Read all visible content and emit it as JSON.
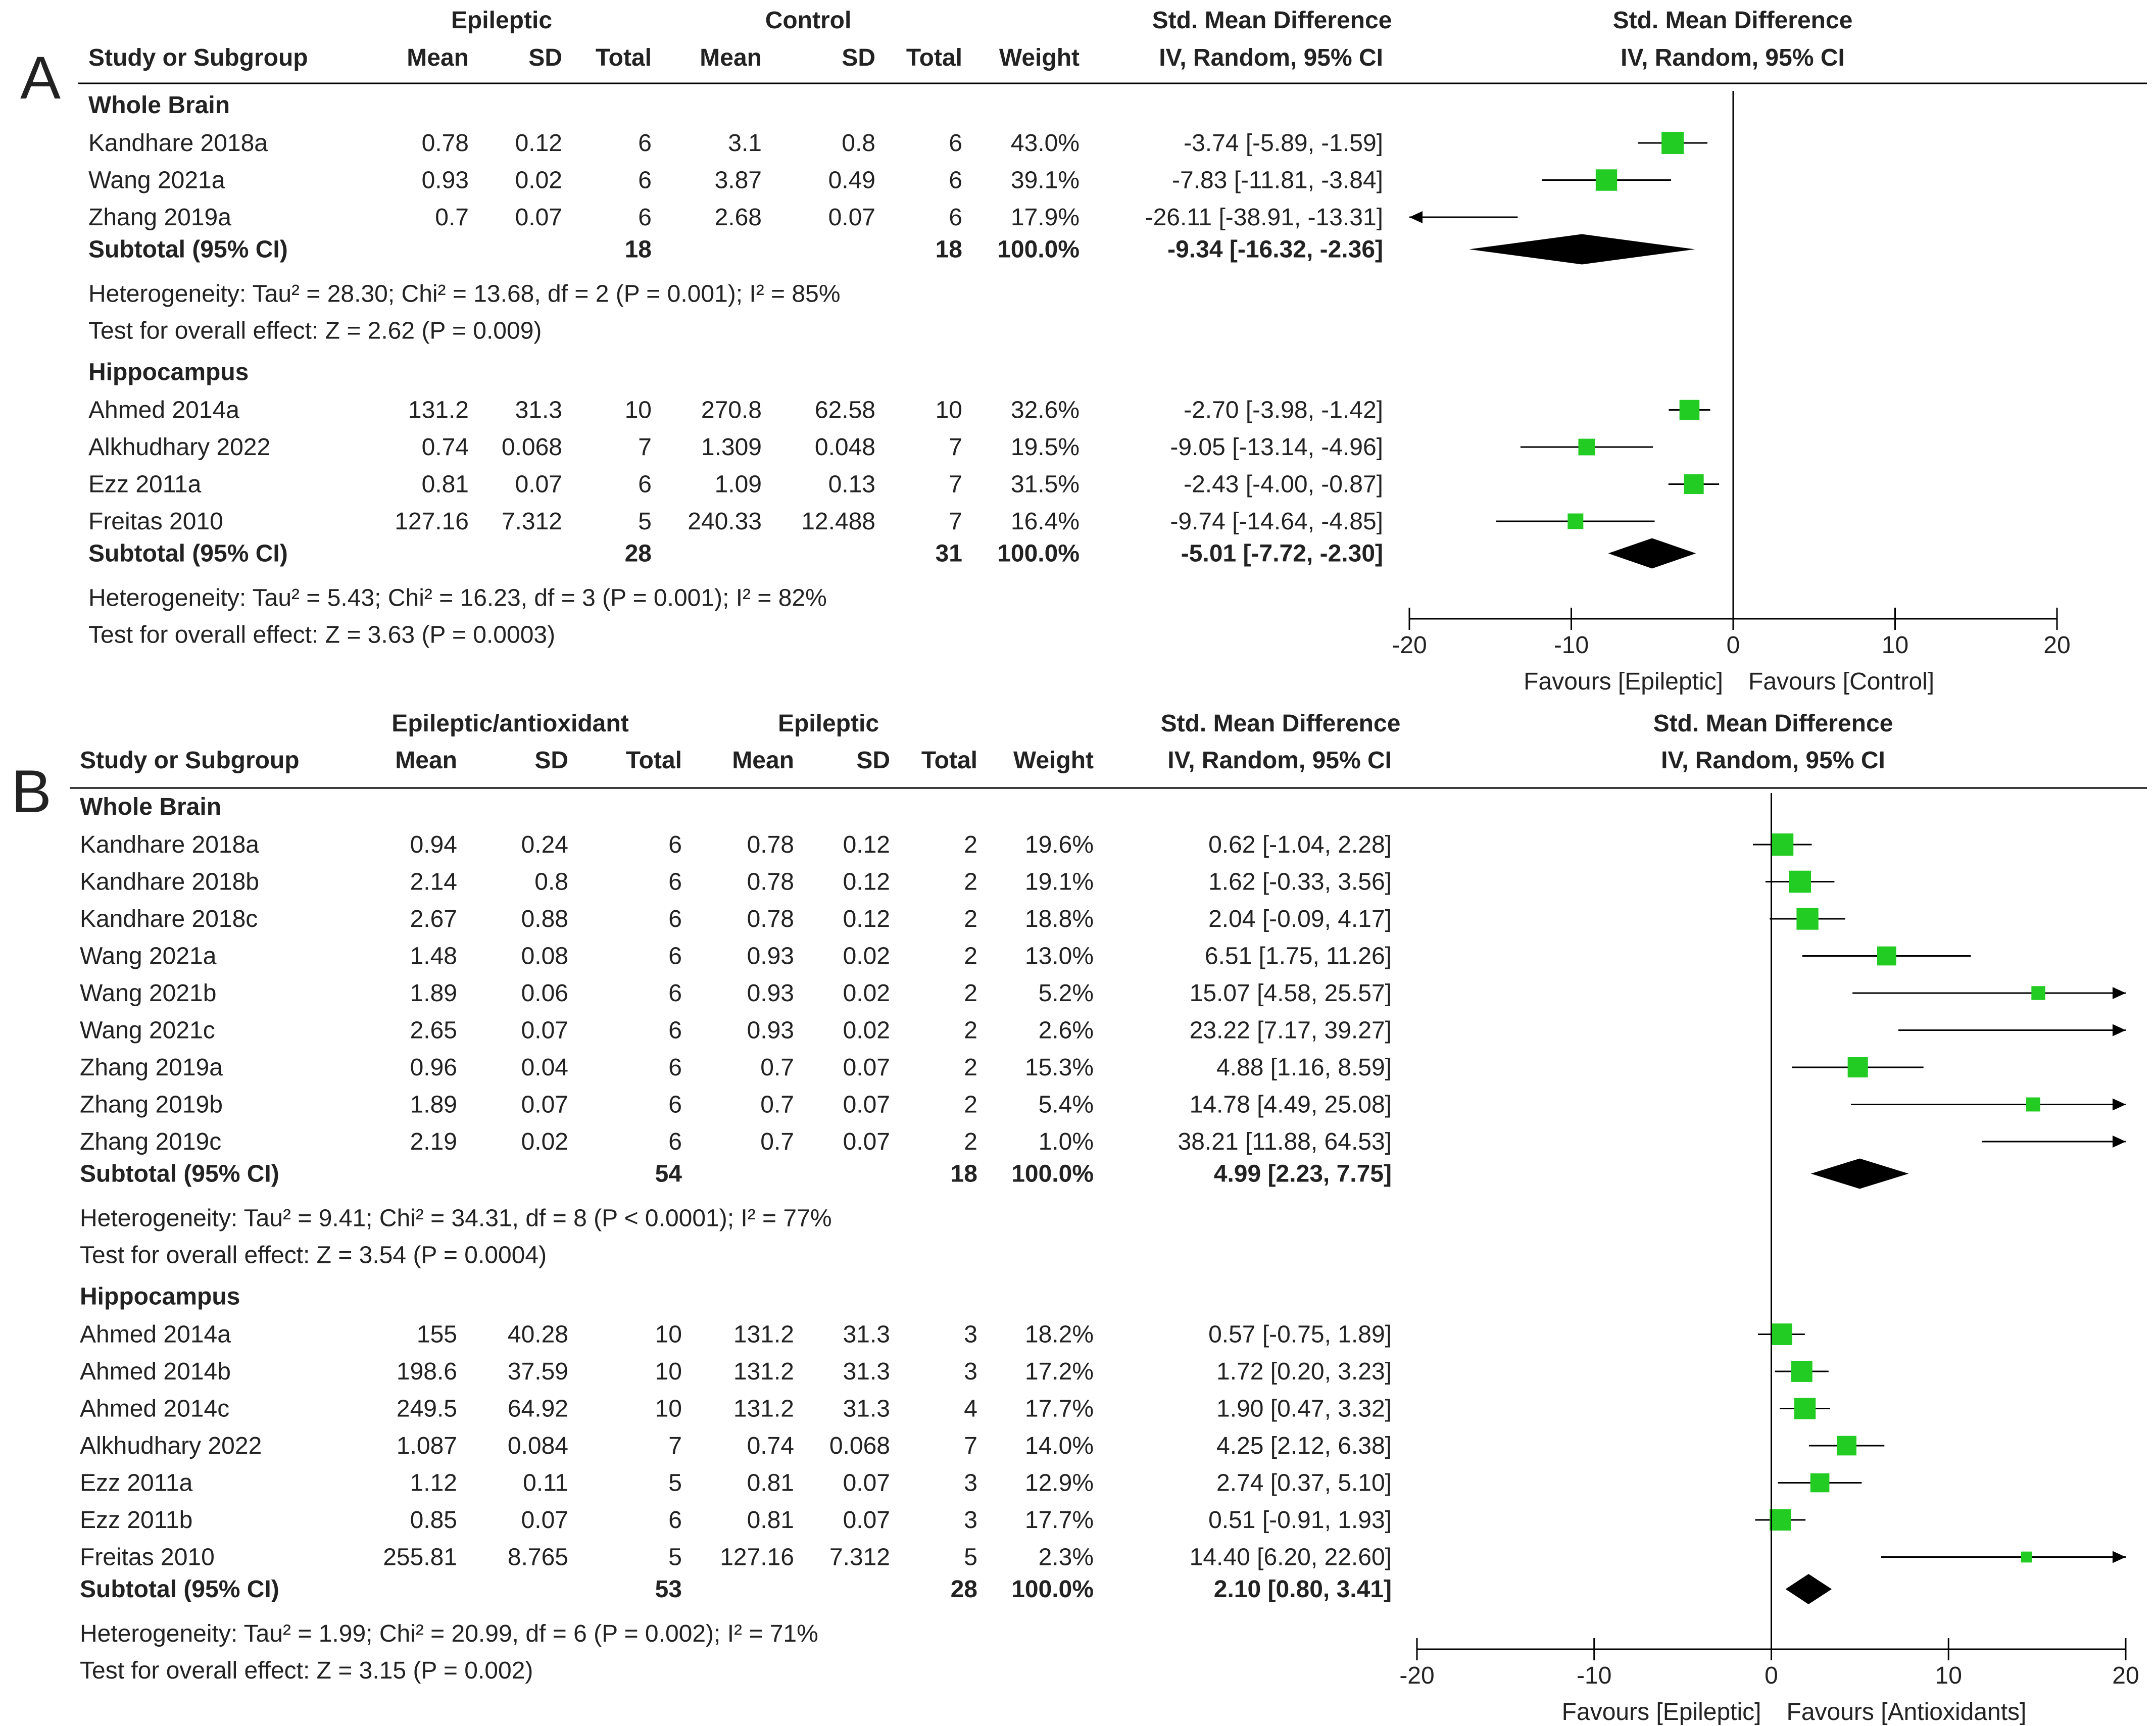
{
  "panels": [
    {
      "letter": "A",
      "group1_name": "Epileptic",
      "group2_name": "Control",
      "headers": {
        "study": "Study or Subgroup",
        "mean1": "Mean",
        "sd1": "SD",
        "total1": "Total",
        "mean2": "Mean",
        "sd2": "SD",
        "total2": "Total",
        "weight": "Weight",
        "effect_title": "Std. Mean Difference",
        "effect_sub": "IV, Random, 95% CI",
        "plot_title": "Std. Mean Difference",
        "plot_sub": "IV, Random, 95% CI"
      },
      "axis": {
        "ticks": [
          "-20",
          "-10",
          "0",
          "10",
          "20"
        ],
        "tick_values": [
          -20,
          -10,
          0,
          10,
          20
        ],
        "range": [
          -20,
          20
        ],
        "favours_left": "Favours [Epileptic]",
        "favours_right": "Favours [Control]"
      },
      "subgroups": [
        {
          "name": "Whole Brain",
          "studies": [
            {
              "study": "Kandhare 2018a",
              "mean1": "0.78",
              "sd1": "0.12",
              "total1": "6",
              "mean2": "3.1",
              "sd2": "0.8",
              "total2": "6",
              "weight": "43.0%",
              "ci": "-3.74 [-5.89, -1.59]",
              "est": -3.74,
              "lo": -5.89,
              "hi": -1.59,
              "w": 43.0
            },
            {
              "study": "Wang 2021a",
              "mean1": "0.93",
              "sd1": "0.02",
              "total1": "6",
              "mean2": "3.87",
              "sd2": "0.49",
              "total2": "6",
              "weight": "39.1%",
              "ci": "-7.83 [-11.81, -3.84]",
              "est": -7.83,
              "lo": -11.81,
              "hi": -3.84,
              "w": 39.1
            },
            {
              "study": "Zhang 2019a",
              "mean1": "0.7",
              "sd1": "0.07",
              "total1": "6",
              "mean2": "2.68",
              "sd2": "0.07",
              "total2": "6",
              "weight": "17.9%",
              "ci": "-26.11 [-38.91, -13.31]",
              "est": -26.11,
              "lo": -38.91,
              "hi": -13.31,
              "w": 17.9
            }
          ],
          "subtotal": {
            "label": "Subtotal (95% CI)",
            "total1": "18",
            "total2": "18",
            "weight": "100.0%",
            "ci": "-9.34 [-16.32, -2.36]",
            "est": -9.34,
            "lo": -16.32,
            "hi": -2.36
          },
          "heterogeneity": "Heterogeneity: Tau² = 28.30; Chi² = 13.68, df = 2 (P = 0.001); I² = 85%",
          "overall": "Test for overall effect: Z = 2.62 (P = 0.009)"
        },
        {
          "name": "Hippocampus",
          "studies": [
            {
              "study": "Ahmed 2014a",
              "mean1": "131.2",
              "sd1": "31.3",
              "total1": "10",
              "mean2": "270.8",
              "sd2": "62.58",
              "total2": "10",
              "weight": "32.6%",
              "ci": "-2.70 [-3.98, -1.42]",
              "est": -2.7,
              "lo": -3.98,
              "hi": -1.42,
              "w": 32.6
            },
            {
              "study": "Alkhudhary 2022",
              "mean1": "0.74",
              "sd1": "0.068",
              "total1": "7",
              "mean2": "1.309",
              "sd2": "0.048",
              "total2": "7",
              "weight": "19.5%",
              "ci": "-9.05 [-13.14, -4.96]",
              "est": -9.05,
              "lo": -13.14,
              "hi": -4.96,
              "w": 19.5
            },
            {
              "study": "Ezz 2011a",
              "mean1": "0.81",
              "sd1": "0.07",
              "total1": "6",
              "mean2": "1.09",
              "sd2": "0.13",
              "total2": "7",
              "weight": "31.5%",
              "ci": "-2.43 [-4.00, -0.87]",
              "est": -2.43,
              "lo": -4.0,
              "hi": -0.87,
              "w": 31.5
            },
            {
              "study": "Freitas 2010",
              "mean1": "127.16",
              "sd1": "7.312",
              "total1": "5",
              "mean2": "240.33",
              "sd2": "12.488",
              "total2": "7",
              "weight": "16.4%",
              "ci": "-9.74 [-14.64, -4.85]",
              "est": -9.74,
              "lo": -14.64,
              "hi": -4.85,
              "w": 16.4
            }
          ],
          "subtotal": {
            "label": "Subtotal (95% CI)",
            "total1": "28",
            "total2": "31",
            "weight": "100.0%",
            "ci": "-5.01 [-7.72, -2.30]",
            "est": -5.01,
            "lo": -7.72,
            "hi": -2.3
          },
          "heterogeneity": "Heterogeneity: Tau² = 5.43; Chi² = 16.23, df = 3 (P = 0.001); I² = 82%",
          "overall": "Test for overall effect: Z = 3.63 (P = 0.0003)"
        }
      ]
    },
    {
      "letter": "B",
      "group1_name": "Epileptic/antioxidant",
      "group2_name": "Epileptic",
      "headers": {
        "study": "Study or Subgroup",
        "mean1": "Mean",
        "sd1": "SD",
        "total1": "Total",
        "mean2": "Mean",
        "sd2": "SD",
        "total2": "Total",
        "weight": "Weight",
        "effect_title": "Std. Mean Difference",
        "effect_sub": "IV, Random, 95% CI",
        "plot_title": "Std. Mean Difference",
        "plot_sub": "IV, Random, 95% CI"
      },
      "axis": {
        "ticks": [
          "-20",
          "-10",
          "0",
          "10",
          "20"
        ],
        "tick_values": [
          -20,
          -10,
          0,
          10,
          20
        ],
        "range": [
          -20,
          20
        ],
        "favours_left": "Favours [Epileptic]",
        "favours_right": "Favours [Antioxidants]"
      },
      "subgroups": [
        {
          "name": "Whole Brain",
          "studies": [
            {
              "study": "Kandhare 2018a",
              "mean1": "0.94",
              "sd1": "0.24",
              "total1": "6",
              "mean2": "0.78",
              "sd2": "0.12",
              "total2": "2",
              "weight": "19.6%",
              "ci": "0.62 [-1.04, 2.28]",
              "est": 0.62,
              "lo": -1.04,
              "hi": 2.28,
              "w": 19.6
            },
            {
              "study": "Kandhare 2018b",
              "mean1": "2.14",
              "sd1": "0.8",
              "total1": "6",
              "mean2": "0.78",
              "sd2": "0.12",
              "total2": "2",
              "weight": "19.1%",
              "ci": "1.62 [-0.33, 3.56]",
              "est": 1.62,
              "lo": -0.33,
              "hi": 3.56,
              "w": 19.1
            },
            {
              "study": "Kandhare 2018c",
              "mean1": "2.67",
              "sd1": "0.88",
              "total1": "6",
              "mean2": "0.78",
              "sd2": "0.12",
              "total2": "2",
              "weight": "18.8%",
              "ci": "2.04 [-0.09, 4.17]",
              "est": 2.04,
              "lo": -0.09,
              "hi": 4.17,
              "w": 18.8
            },
            {
              "study": "Wang 2021a",
              "mean1": "1.48",
              "sd1": "0.08",
              "total1": "6",
              "mean2": "0.93",
              "sd2": "0.02",
              "total2": "2",
              "weight": "13.0%",
              "ci": "6.51 [1.75, 11.26]",
              "est": 6.51,
              "lo": 1.75,
              "hi": 11.26,
              "w": 13.0
            },
            {
              "study": "Wang 2021b",
              "mean1": "1.89",
              "sd1": "0.06",
              "total1": "6",
              "mean2": "0.93",
              "sd2": "0.02",
              "total2": "2",
              "weight": "5.2%",
              "ci": "15.07 [4.58, 25.57]",
              "est": 15.07,
              "lo": 4.58,
              "hi": 25.57,
              "w": 5.2
            },
            {
              "study": "Wang 2021c",
              "mean1": "2.65",
              "sd1": "0.07",
              "total1": "6",
              "mean2": "0.93",
              "sd2": "0.02",
              "total2": "2",
              "weight": "2.6%",
              "ci": "23.22 [7.17, 39.27]",
              "est": 23.22,
              "lo": 7.17,
              "hi": 39.27,
              "w": 2.6
            },
            {
              "study": "Zhang 2019a",
              "mean1": "0.96",
              "sd1": "0.04",
              "total1": "6",
              "mean2": "0.7",
              "sd2": "0.07",
              "total2": "2",
              "weight": "15.3%",
              "ci": "4.88 [1.16, 8.59]",
              "est": 4.88,
              "lo": 1.16,
              "hi": 8.59,
              "w": 15.3
            },
            {
              "study": "Zhang 2019b",
              "mean1": "1.89",
              "sd1": "0.07",
              "total1": "6",
              "mean2": "0.7",
              "sd2": "0.07",
              "total2": "2",
              "weight": "5.4%",
              "ci": "14.78 [4.49, 25.08]",
              "est": 14.78,
              "lo": 4.49,
              "hi": 25.08,
              "w": 5.4
            },
            {
              "study": "Zhang 2019c",
              "mean1": "2.19",
              "sd1": "0.02",
              "total1": "6",
              "mean2": "0.7",
              "sd2": "0.07",
              "total2": "2",
              "weight": "1.0%",
              "ci": "38.21 [11.88, 64.53]",
              "est": 38.21,
              "lo": 11.88,
              "hi": 64.53,
              "w": 1.0
            }
          ],
          "subtotal": {
            "label": "Subtotal (95% CI)",
            "total1": "54",
            "total2": "18",
            "weight": "100.0%",
            "ci": "4.99 [2.23, 7.75]",
            "est": 4.99,
            "lo": 2.23,
            "hi": 7.75
          },
          "heterogeneity": "Heterogeneity: Tau² = 9.41; Chi² = 34.31, df = 8 (P < 0.0001); I² = 77%",
          "overall": "Test for overall effect: Z = 3.54 (P = 0.0004)"
        },
        {
          "name": "Hippocampus",
          "studies": [
            {
              "study": "Ahmed 2014a",
              "mean1": "155",
              "sd1": "40.28",
              "total1": "10",
              "mean2": "131.2",
              "sd2": "31.3",
              "total2": "3",
              "weight": "18.2%",
              "ci": "0.57 [-0.75, 1.89]",
              "est": 0.57,
              "lo": -0.75,
              "hi": 1.89,
              "w": 18.2
            },
            {
              "study": "Ahmed 2014b",
              "mean1": "198.6",
              "sd1": "37.59",
              "total1": "10",
              "mean2": "131.2",
              "sd2": "31.3",
              "total2": "3",
              "weight": "17.2%",
              "ci": "1.72 [0.20, 3.23]",
              "est": 1.72,
              "lo": 0.2,
              "hi": 3.23,
              "w": 17.2
            },
            {
              "study": "Ahmed 2014c",
              "mean1": "249.5",
              "sd1": "64.92",
              "total1": "10",
              "mean2": "131.2",
              "sd2": "31.3",
              "total2": "4",
              "weight": "17.7%",
              "ci": "1.90 [0.47, 3.32]",
              "est": 1.9,
              "lo": 0.47,
              "hi": 3.32,
              "w": 17.7
            },
            {
              "study": "Alkhudhary 2022",
              "mean1": "1.087",
              "sd1": "0.084",
              "total1": "7",
              "mean2": "0.74",
              "sd2": "0.068",
              "total2": "7",
              "weight": "14.0%",
              "ci": "4.25 [2.12, 6.38]",
              "est": 4.25,
              "lo": 2.12,
              "hi": 6.38,
              "w": 14.0
            },
            {
              "study": "Ezz 2011a",
              "mean1": "1.12",
              "sd1": "0.11",
              "total1": "5",
              "mean2": "0.81",
              "sd2": "0.07",
              "total2": "3",
              "weight": "12.9%",
              "ci": "2.74 [0.37, 5.10]",
              "est": 2.74,
              "lo": 0.37,
              "hi": 5.1,
              "w": 12.9
            },
            {
              "study": "Ezz 2011b",
              "mean1": "0.85",
              "sd1": "0.07",
              "total1": "6",
              "mean2": "0.81",
              "sd2": "0.07",
              "total2": "3",
              "weight": "17.7%",
              "ci": "0.51 [-0.91, 1.93]",
              "est": 0.51,
              "lo": -0.91,
              "hi": 1.93,
              "w": 17.7
            },
            {
              "study": "Freitas 2010",
              "mean1": "255.81",
              "sd1": "8.765",
              "total1": "5",
              "mean2": "127.16",
              "sd2": "7.312",
              "total2": "5",
              "weight": "2.3%",
              "ci": "14.40 [6.20, 22.60]",
              "est": 14.4,
              "lo": 6.2,
              "hi": 22.6,
              "w": 2.3
            }
          ],
          "subtotal": {
            "label": "Subtotal (95% CI)",
            "total1": "53",
            "total2": "28",
            "weight": "100.0%",
            "ci": "2.10 [0.80, 3.41]",
            "est": 2.1,
            "lo": 0.8,
            "hi": 3.41
          },
          "heterogeneity": "Heterogeneity: Tau² = 1.99; Chi² = 20.99, df = 6 (P = 0.002); I² = 71%",
          "overall": "Test for overall effect: Z = 3.15 (P = 0.002)"
        }
      ]
    }
  ],
  "colors": {
    "marker": "#22cc22",
    "line": "#000000",
    "diamond": "#000000",
    "text": "#222222"
  },
  "chart_data": [
    {
      "type": "forest",
      "panel": "A",
      "measure": "Std. Mean Difference",
      "method": "IV, Random, 95% CI",
      "xlim": [
        -20,
        20
      ],
      "x_ticks": [
        -20,
        -10,
        0,
        10,
        20
      ],
      "favours_left": "Favours [Epileptic]",
      "favours_right": "Favours [Control]",
      "series": [
        {
          "name": "Whole Brain",
          "studies": [
            "Kandhare 2018a",
            "Wang 2021a",
            "Zhang 2019a"
          ],
          "estimates": [
            -3.74,
            -7.83,
            -26.11
          ],
          "ci_low": [
            -5.89,
            -11.81,
            -38.91
          ],
          "ci_high": [
            -1.59,
            -3.84,
            -13.31
          ],
          "weights": [
            43.0,
            39.1,
            17.9
          ],
          "subtotal": {
            "estimate": -9.34,
            "ci_low": -16.32,
            "ci_high": -2.36
          }
        },
        {
          "name": "Hippocampus",
          "studies": [
            "Ahmed 2014a",
            "Alkhudhary 2022",
            "Ezz 2011a",
            "Freitas 2010"
          ],
          "estimates": [
            -2.7,
            -9.05,
            -2.43,
            -9.74
          ],
          "ci_low": [
            -3.98,
            -13.14,
            -4.0,
            -14.64
          ],
          "ci_high": [
            -1.42,
            -4.96,
            -0.87,
            -4.85
          ],
          "weights": [
            32.6,
            19.5,
            31.5,
            16.4
          ],
          "subtotal": {
            "estimate": -5.01,
            "ci_low": -7.72,
            "ci_high": -2.3
          }
        }
      ]
    },
    {
      "type": "forest",
      "panel": "B",
      "measure": "Std. Mean Difference",
      "method": "IV, Random, 95% CI",
      "xlim": [
        -20,
        20
      ],
      "x_ticks": [
        -20,
        -10,
        0,
        10,
        20
      ],
      "favours_left": "Favours [Epileptic]",
      "favours_right": "Favours [Antioxidants]",
      "series": [
        {
          "name": "Whole Brain",
          "studies": [
            "Kandhare 2018a",
            "Kandhare 2018b",
            "Kandhare 2018c",
            "Wang 2021a",
            "Wang 2021b",
            "Wang 2021c",
            "Zhang 2019a",
            "Zhang 2019b",
            "Zhang 2019c"
          ],
          "estimates": [
            0.62,
            1.62,
            2.04,
            6.51,
            15.07,
            23.22,
            4.88,
            14.78,
            38.21
          ],
          "ci_low": [
            -1.04,
            -0.33,
            -0.09,
            1.75,
            4.58,
            7.17,
            1.16,
            4.49,
            11.88
          ],
          "ci_high": [
            2.28,
            3.56,
            4.17,
            11.26,
            25.57,
            39.27,
            8.59,
            25.08,
            64.53
          ],
          "weights": [
            19.6,
            19.1,
            18.8,
            13.0,
            5.2,
            2.6,
            15.3,
            5.4,
            1.0
          ],
          "subtotal": {
            "estimate": 4.99,
            "ci_low": 2.23,
            "ci_high": 7.75
          }
        },
        {
          "name": "Hippocampus",
          "studies": [
            "Ahmed 2014a",
            "Ahmed 2014b",
            "Ahmed 2014c",
            "Alkhudhary 2022",
            "Ezz 2011a",
            "Ezz 2011b",
            "Freitas 2010"
          ],
          "estimates": [
            0.57,
            1.72,
            1.9,
            4.25,
            2.74,
            0.51,
            14.4
          ],
          "ci_low": [
            -0.75,
            0.2,
            0.47,
            2.12,
            0.37,
            -0.91,
            6.2
          ],
          "ci_high": [
            1.89,
            3.23,
            3.32,
            6.38,
            5.1,
            1.93,
            22.6
          ],
          "weights": [
            18.2,
            17.2,
            17.7,
            14.0,
            12.9,
            17.7,
            2.3
          ],
          "subtotal": {
            "estimate": 2.1,
            "ci_low": 0.8,
            "ci_high": 3.41
          }
        }
      ]
    }
  ]
}
